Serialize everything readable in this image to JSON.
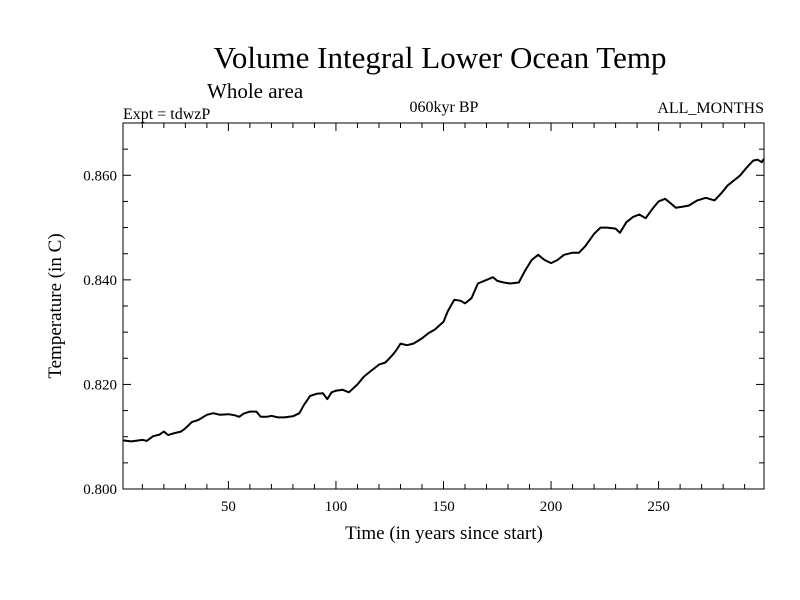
{
  "chart_data": {
    "type": "line",
    "title": "Volume Integral Lower Ocean Temp",
    "subtitle": "Whole area",
    "annotations": {
      "left": "Expt = tdwzP",
      "center": "060kyr BP",
      "right": "ALL_MONTHS"
    },
    "xlabel": "Time (in years since start)",
    "ylabel": "Temperature (in C)",
    "xlim": [
      1,
      299
    ],
    "ylim": [
      0.8,
      0.87
    ],
    "x_ticks": [
      50,
      100,
      150,
      200,
      250
    ],
    "x_tick_labels": [
      "50",
      "100",
      "150",
      "200",
      "250"
    ],
    "y_ticks": [
      0.8,
      0.82,
      0.84,
      0.86
    ],
    "y_tick_labels": [
      "0.800",
      "0.820",
      "0.840",
      "0.860"
    ],
    "grid": false,
    "series": [
      {
        "color": "#000000",
        "points": [
          [
            1,
            0.8093
          ],
          [
            5,
            0.8091
          ],
          [
            10,
            0.8094
          ],
          [
            12,
            0.8092
          ],
          [
            15,
            0.8101
          ],
          [
            18,
            0.8104
          ],
          [
            20,
            0.811
          ],
          [
            22,
            0.8103
          ],
          [
            25,
            0.8107
          ],
          [
            28,
            0.811
          ],
          [
            30,
            0.8116
          ],
          [
            33,
            0.8128
          ],
          [
            36,
            0.8132
          ],
          [
            40,
            0.8142
          ],
          [
            43,
            0.8145
          ],
          [
            46,
            0.8142
          ],
          [
            50,
            0.8143
          ],
          [
            53,
            0.8141
          ],
          [
            55,
            0.8138
          ],
          [
            57,
            0.8144
          ],
          [
            60,
            0.8148
          ],
          [
            63,
            0.8148
          ],
          [
            65,
            0.8138
          ],
          [
            68,
            0.8138
          ],
          [
            70,
            0.814
          ],
          [
            73,
            0.8137
          ],
          [
            76,
            0.8137
          ],
          [
            80,
            0.8139
          ],
          [
            83,
            0.8145
          ],
          [
            85,
            0.816
          ],
          [
            88,
            0.8178
          ],
          [
            91,
            0.8182
          ],
          [
            94,
            0.8183
          ],
          [
            96,
            0.8172
          ],
          [
            98,
            0.8185
          ],
          [
            100,
            0.8188
          ],
          [
            103,
            0.819
          ],
          [
            106,
            0.8185
          ],
          [
            110,
            0.82
          ],
          [
            113,
            0.8215
          ],
          [
            116,
            0.8225
          ],
          [
            120,
            0.8238
          ],
          [
            123,
            0.8242
          ],
          [
            126,
            0.8255
          ],
          [
            128,
            0.8265
          ],
          [
            130,
            0.8278
          ],
          [
            133,
            0.8275
          ],
          [
            136,
            0.8278
          ],
          [
            140,
            0.8288
          ],
          [
            143,
            0.8298
          ],
          [
            146,
            0.8305
          ],
          [
            150,
            0.832
          ],
          [
            152,
            0.834
          ],
          [
            155,
            0.8362
          ],
          [
            158,
            0.836
          ],
          [
            160,
            0.8355
          ],
          [
            163,
            0.8365
          ],
          [
            166,
            0.8393
          ],
          [
            170,
            0.84
          ],
          [
            173,
            0.8405
          ],
          [
            175,
            0.8398
          ],
          [
            178,
            0.8395
          ],
          [
            181,
            0.8393
          ],
          [
            185,
            0.8395
          ],
          [
            188,
            0.8418
          ],
          [
            191,
            0.8438
          ],
          [
            194,
            0.8448
          ],
          [
            197,
            0.8438
          ],
          [
            200,
            0.8432
          ],
          [
            203,
            0.8438
          ],
          [
            206,
            0.8448
          ],
          [
            210,
            0.8452
          ],
          [
            213,
            0.8452
          ],
          [
            216,
            0.8465
          ],
          [
            220,
            0.8488
          ],
          [
            223,
            0.85
          ],
          [
            226,
            0.85
          ],
          [
            230,
            0.8498
          ],
          [
            232,
            0.849
          ],
          [
            235,
            0.851
          ],
          [
            238,
            0.852
          ],
          [
            241,
            0.8525
          ],
          [
            244,
            0.8518
          ],
          [
            247,
            0.8535
          ],
          [
            250,
            0.855
          ],
          [
            253,
            0.8555
          ],
          [
            256,
            0.8545
          ],
          [
            258,
            0.8538
          ],
          [
            261,
            0.854
          ],
          [
            264,
            0.8542
          ],
          [
            268,
            0.8552
          ],
          [
            272,
            0.8557
          ],
          [
            276,
            0.8552
          ],
          [
            279,
            0.8565
          ],
          [
            282,
            0.858
          ],
          [
            285,
            0.859
          ],
          [
            288,
            0.86
          ],
          [
            291,
            0.8615
          ],
          [
            294,
            0.8628
          ],
          [
            296,
            0.863
          ],
          [
            298,
            0.8625
          ],
          [
            299,
            0.8632
          ]
        ]
      }
    ]
  }
}
